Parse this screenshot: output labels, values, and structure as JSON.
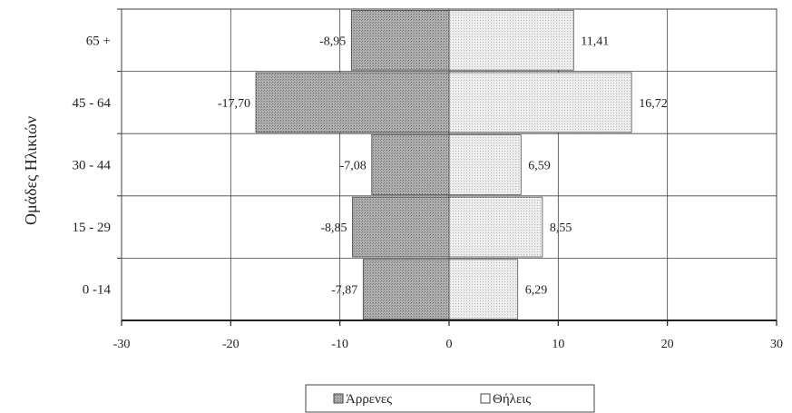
{
  "chart_data": {
    "type": "bar",
    "orientation": "horizontal",
    "stacked_diverging": true,
    "categories": [
      "0 -14",
      "15 - 29",
      "30 - 44",
      "45 - 64",
      "65 +"
    ],
    "series": [
      {
        "name": "Άρρενες",
        "values": [
          -7.87,
          -8.85,
          -7.08,
          -17.7,
          -8.95
        ],
        "labels": [
          "-7,87",
          "-8,85",
          "-7,08",
          "-17,70",
          "-8,95"
        ],
        "color": "#a8a8a8"
      },
      {
        "name": "Θήλεις",
        "values": [
          6.29,
          8.55,
          6.59,
          16.72,
          11.41
        ],
        "labels": [
          "6,29",
          "8,55",
          "6,59",
          "16,72",
          "11,41"
        ],
        "color": "#e4e4e4"
      }
    ],
    "ylabel": "Ομάδες Ηλικιών",
    "xlabel": "",
    "xlim": [
      -30,
      30
    ],
    "xticks": [
      -30,
      -20,
      -10,
      0,
      10,
      20,
      30
    ],
    "grid": true,
    "legend": "bottom"
  }
}
